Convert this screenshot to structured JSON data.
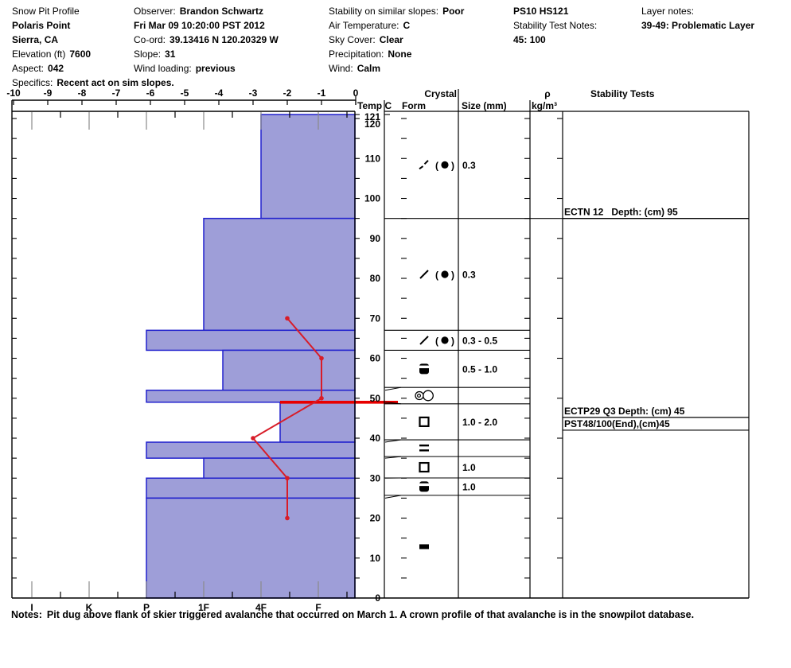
{
  "header": {
    "columns": [
      {
        "rows": [
          {
            "label": "Snow Pit Profile",
            "value": ""
          },
          {
            "label": "",
            "value": "Polaris Point"
          },
          {
            "label": "",
            "value": "Sierra, CA"
          },
          {
            "label": "Elevation (ft)",
            "value": "7600"
          },
          {
            "label": "Aspect:",
            "value": "042"
          },
          {
            "label": "Specifics:",
            "value": "Recent act on sim slopes."
          }
        ]
      },
      {
        "rows": [
          {
            "label": "Observer:",
            "value": "Brandon Schwartz"
          },
          {
            "label": "",
            "value": "Fri Mar 09 10:20:00 PST 2012"
          },
          {
            "label": "Co-ord:",
            "value": "39.13416 N 120.20329 W"
          },
          {
            "label": "Slope:",
            "value": "31"
          },
          {
            "label": "Wind loading:",
            "value": "previous"
          }
        ]
      },
      {
        "rows": [
          {
            "label": "Stability on similar slopes:",
            "value": "Poor"
          },
          {
            "label": "Air Temperature:",
            "value": "C"
          },
          {
            "label": "Sky Cover:",
            "value": "Clear"
          },
          {
            "label": "Precipitation:",
            "value": "None"
          },
          {
            "label": "Wind:",
            "value": "Calm"
          }
        ]
      },
      {
        "rows": [
          {
            "label": "",
            "value": "PS10 HS121"
          },
          {
            "label": "Stability Test Notes:",
            "value": ""
          },
          {
            "label": "",
            "value": "45: 100"
          }
        ]
      },
      {
        "rows": [
          {
            "label": "Layer notes:",
            "value": ""
          },
          {
            "label": "",
            "value": "39-49: Problematic Layer"
          }
        ]
      }
    ]
  },
  "columns_header": {
    "temp": "Temp C",
    "crystal": "Crystal",
    "form": "Form",
    "size": "Size (mm)",
    "rho": "ρ",
    "rho_units": "kg/m³",
    "stability": "Stability Tests"
  },
  "colors": {
    "bar_fill": "#9e9ed8",
    "bar_border": "#2121cd",
    "temp_line": "#d81c28",
    "problem_line": "#e80000",
    "grid_gray": "#8a8a8a",
    "line_black": "#000000"
  },
  "chart_data": [
    {
      "type": "bar",
      "name": "hand-hardness-profile",
      "title": "Snow Pit Profile - hand hardness vs depth",
      "orientation": "horizontal",
      "depth_axis": {
        "unit": "cm",
        "max": 121,
        "ticks": [
          121,
          120,
          110,
          100,
          90,
          80,
          70,
          60,
          50,
          40,
          30,
          20,
          10,
          0
        ]
      },
      "hardness_axis": {
        "ticks": [
          "I",
          "K",
          "P",
          "1F",
          "4F",
          "F"
        ],
        "note": "hardest (I) at left, softest (F) at right"
      },
      "layers": [
        {
          "top": 121,
          "bottom": 95,
          "hardness": "4F"
        },
        {
          "top": 95,
          "bottom": 67,
          "hardness": "1F"
        },
        {
          "top": 67,
          "bottom": 62,
          "hardness": "P"
        },
        {
          "top": 62,
          "bottom": 52,
          "hardness": "1F-"
        },
        {
          "top": 52,
          "bottom": 49,
          "hardness": "P"
        },
        {
          "top": 49,
          "bottom": 39,
          "hardness": "4F-"
        },
        {
          "top": 39,
          "bottom": 35,
          "hardness": "P"
        },
        {
          "top": 35,
          "bottom": 30,
          "hardness": "1F"
        },
        {
          "top": 30,
          "bottom": 25,
          "hardness": "P"
        },
        {
          "top": 25,
          "bottom": 0,
          "hardness": "P"
        }
      ]
    },
    {
      "type": "line",
      "name": "snow-temperature",
      "xlabel": "Temp C",
      "x_range": [
        -10,
        0
      ],
      "x_ticks": [
        -10,
        -9,
        -8,
        -7,
        -6,
        -5,
        -4,
        -3,
        -2,
        -1,
        0
      ],
      "points": [
        {
          "temp": -2,
          "depth": 70
        },
        {
          "temp": -1,
          "depth": 60
        },
        {
          "temp": -1,
          "depth": 50
        },
        {
          "temp": -3,
          "depth": 40
        },
        {
          "temp": -2,
          "depth": 30
        },
        {
          "temp": -2,
          "depth": 20
        }
      ],
      "problem_layer_marker_depth": 49
    },
    {
      "type": "table",
      "name": "crystal-form-size",
      "row_boundaries": [
        95,
        67,
        62,
        52.7,
        48.6,
        39.6,
        35.4,
        30.05,
        25.7
      ],
      "leader_pairs": [
        [
          52,
          52.7
        ],
        [
          49,
          48.6
        ],
        [
          39,
          39.6
        ],
        [
          35,
          35.4
        ],
        [
          30,
          30.05
        ],
        [
          25,
          25.7
        ]
      ],
      "rows": [
        {
          "symbols": [
            "broken-slash",
            "paren-dot"
          ],
          "size": "0.3"
        },
        {
          "symbols": [
            "slash",
            "paren-dot"
          ],
          "size": "0.3"
        },
        {
          "symbols": [
            "slash",
            "paren-dot"
          ],
          "size": "0.3 - 0.5"
        },
        {
          "symbols": [
            "cup-square"
          ],
          "size": "0.5 - 1.0"
        },
        {
          "symbols": [
            "double-circle"
          ],
          "size": ""
        },
        {
          "symbols": [
            "square"
          ],
          "size": "1.0 - 2.0"
        },
        {
          "symbols": [
            "equals"
          ],
          "size": ""
        },
        {
          "symbols": [
            "square"
          ],
          "size": "1.0"
        },
        {
          "symbols": [
            "cup-square"
          ],
          "size": "1.0"
        },
        {
          "symbols": [
            "filled-rect"
          ],
          "size": ""
        }
      ]
    },
    {
      "type": "table",
      "name": "stability-tests",
      "rows": [
        {
          "label": "ECTN 12   Depth: (cm) 95",
          "line_depth": 95
        },
        {
          "label": "ECTP29 Q3 Depth: (cm) 45",
          "line_depth": 45.2
        },
        {
          "label": "PST48/100(End),(cm)45",
          "line_depth": 42
        }
      ]
    }
  ],
  "notes": {
    "label": "Notes:",
    "text": "Pit dug above flank of skier triggered avalanche that occurred on March 1. A crown profile of that avalanche is in the snowpilot database."
  }
}
